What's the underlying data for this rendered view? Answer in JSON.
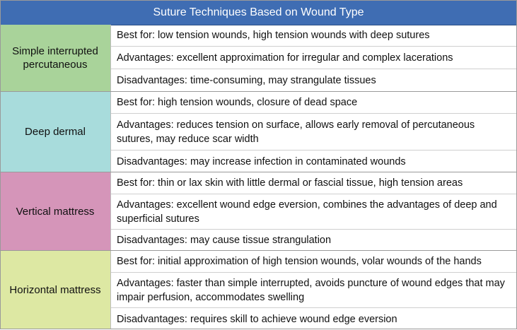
{
  "title": "Suture Techniques Based on Wound Type",
  "techniques": [
    {
      "name": "Simple interrupted percutaneous",
      "color": "#a9d39a",
      "best": "Best for: low tension wounds, high tension wounds with deep sutures",
      "advantages": "Advantages: excellent approximation for irregular and complex lacerations",
      "disadvantages": "Disadvantages: time-consuming, may strangulate tissues"
    },
    {
      "name": "Deep dermal",
      "color": "#a8dcdc",
      "best": "Best for: high tension wounds, closure of dead space",
      "advantages": "Advantages: reduces tension on surface, allows early removal of percutaneous sutures, may reduce scar width",
      "disadvantages": "Disadvantages: may increase infection in contaminated wounds"
    },
    {
      "name": "Vertical mattress",
      "color": "#d595b9",
      "best": "Best for: thin or lax skin with little dermal or fascial tissue, high tension areas",
      "advantages": "Advantages: excellent wound edge eversion, combines the advantages of deep and superficial sutures",
      "disadvantages": "Disadvantages: may cause tissue strangulation"
    },
    {
      "name": "Horizontal mattress",
      "color": "#dde8a3",
      "best": "Best for: initial approximation of high tension wounds, volar wounds of the hands",
      "advantages": "Advantages: faster than simple interrupted, avoids puncture of wound edges that may impair perfusion, accommodates swelling",
      "disadvantages": "Disadvantages: requires skill to achieve wound edge eversion"
    }
  ]
}
